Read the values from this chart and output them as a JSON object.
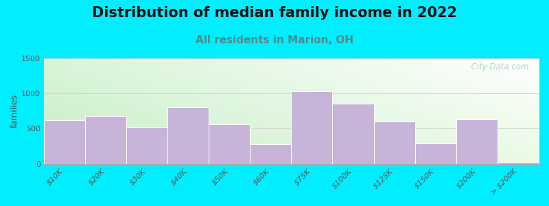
{
  "title": "Distribution of median family income in 2022",
  "subtitle": "All residents in Marion, OH",
  "ylabel": "families",
  "categories": [
    "$10K",
    "$20K",
    "$30K",
    "$40K",
    "$50K",
    "$60K",
    "$75K",
    "$100K",
    "$125K",
    "$150K",
    "$200K",
    "> $200K"
  ],
  "values": [
    620,
    680,
    520,
    810,
    560,
    280,
    1030,
    860,
    600,
    290,
    630,
    30
  ],
  "bar_color": "#c8b4d8",
  "bar_edgecolor": "white",
  "ylim": [
    0,
    1500
  ],
  "yticks": [
    0,
    500,
    1000,
    1500
  ],
  "bg_outer": "#00eeff",
  "watermark": "  City-Data.com",
  "title_fontsize": 15,
  "subtitle_fontsize": 11,
  "ylabel_fontsize": 9,
  "tick_fontsize": 8,
  "subtitle_color": "#558888"
}
